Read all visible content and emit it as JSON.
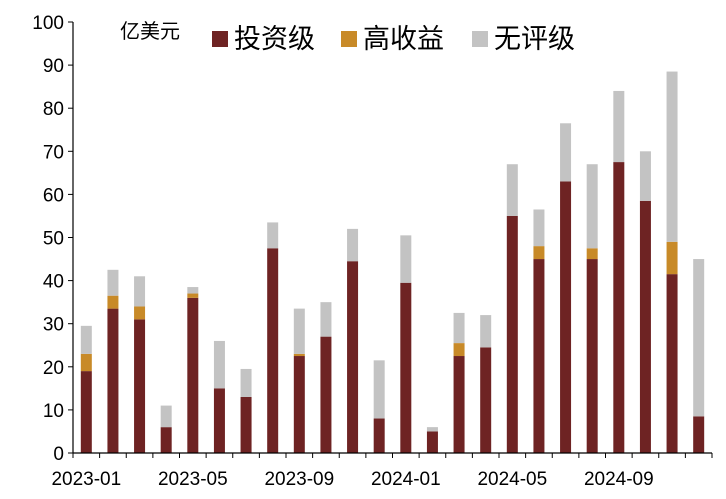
{
  "chart_data": {
    "type": "bar",
    "stacked": true,
    "unit_label": "亿美元",
    "ylim": [
      0,
      100
    ],
    "yticks": [
      0,
      10,
      20,
      30,
      40,
      50,
      60,
      70,
      80,
      90,
      100
    ],
    "xtick_labels": [
      "2023-01",
      "2023-05",
      "2023-09",
      "2024-01",
      "2024-05",
      "2024-09"
    ],
    "xtick_positions": [
      0,
      4,
      8,
      12,
      16,
      20
    ],
    "categories": [
      "2023-01",
      "2023-02",
      "2023-03",
      "2023-04",
      "2023-05",
      "2023-06",
      "2023-07",
      "2023-08",
      "2023-09",
      "2023-10",
      "2023-11",
      "2023-12",
      "2024-01",
      "2024-02",
      "2024-03",
      "2024-04",
      "2024-05",
      "2024-06",
      "2024-07",
      "2024-08",
      "2024-09",
      "2024-10",
      "2024-11",
      "2024-12"
    ],
    "legend_position": "top",
    "grid": false,
    "series": [
      {
        "name": "投资级",
        "color": "#6e2323",
        "values": [
          19,
          33.5,
          31,
          6,
          36,
          15,
          13,
          47.5,
          22.5,
          27,
          44.5,
          8,
          39.5,
          5,
          22.5,
          24.5,
          55,
          45,
          63,
          45,
          67.5,
          58.5,
          41.5,
          8.5
        ]
      },
      {
        "name": "高收益",
        "color": "#c88a28",
        "values": [
          4,
          3,
          3,
          0,
          1,
          0,
          0,
          0,
          0.5,
          0,
          0,
          0,
          0,
          0,
          3,
          0,
          0,
          3,
          0,
          2.5,
          0,
          0,
          7.5,
          0
        ]
      },
      {
        "name": "无评级",
        "color": "#c3c3c3",
        "values": [
          6.5,
          6,
          7,
          5,
          1.5,
          11,
          6.5,
          6,
          10.5,
          8,
          7.5,
          13.5,
          11,
          1,
          7,
          7.5,
          12,
          8.5,
          13.5,
          19.5,
          16.5,
          11.5,
          39.5,
          36.5
        ]
      }
    ]
  }
}
